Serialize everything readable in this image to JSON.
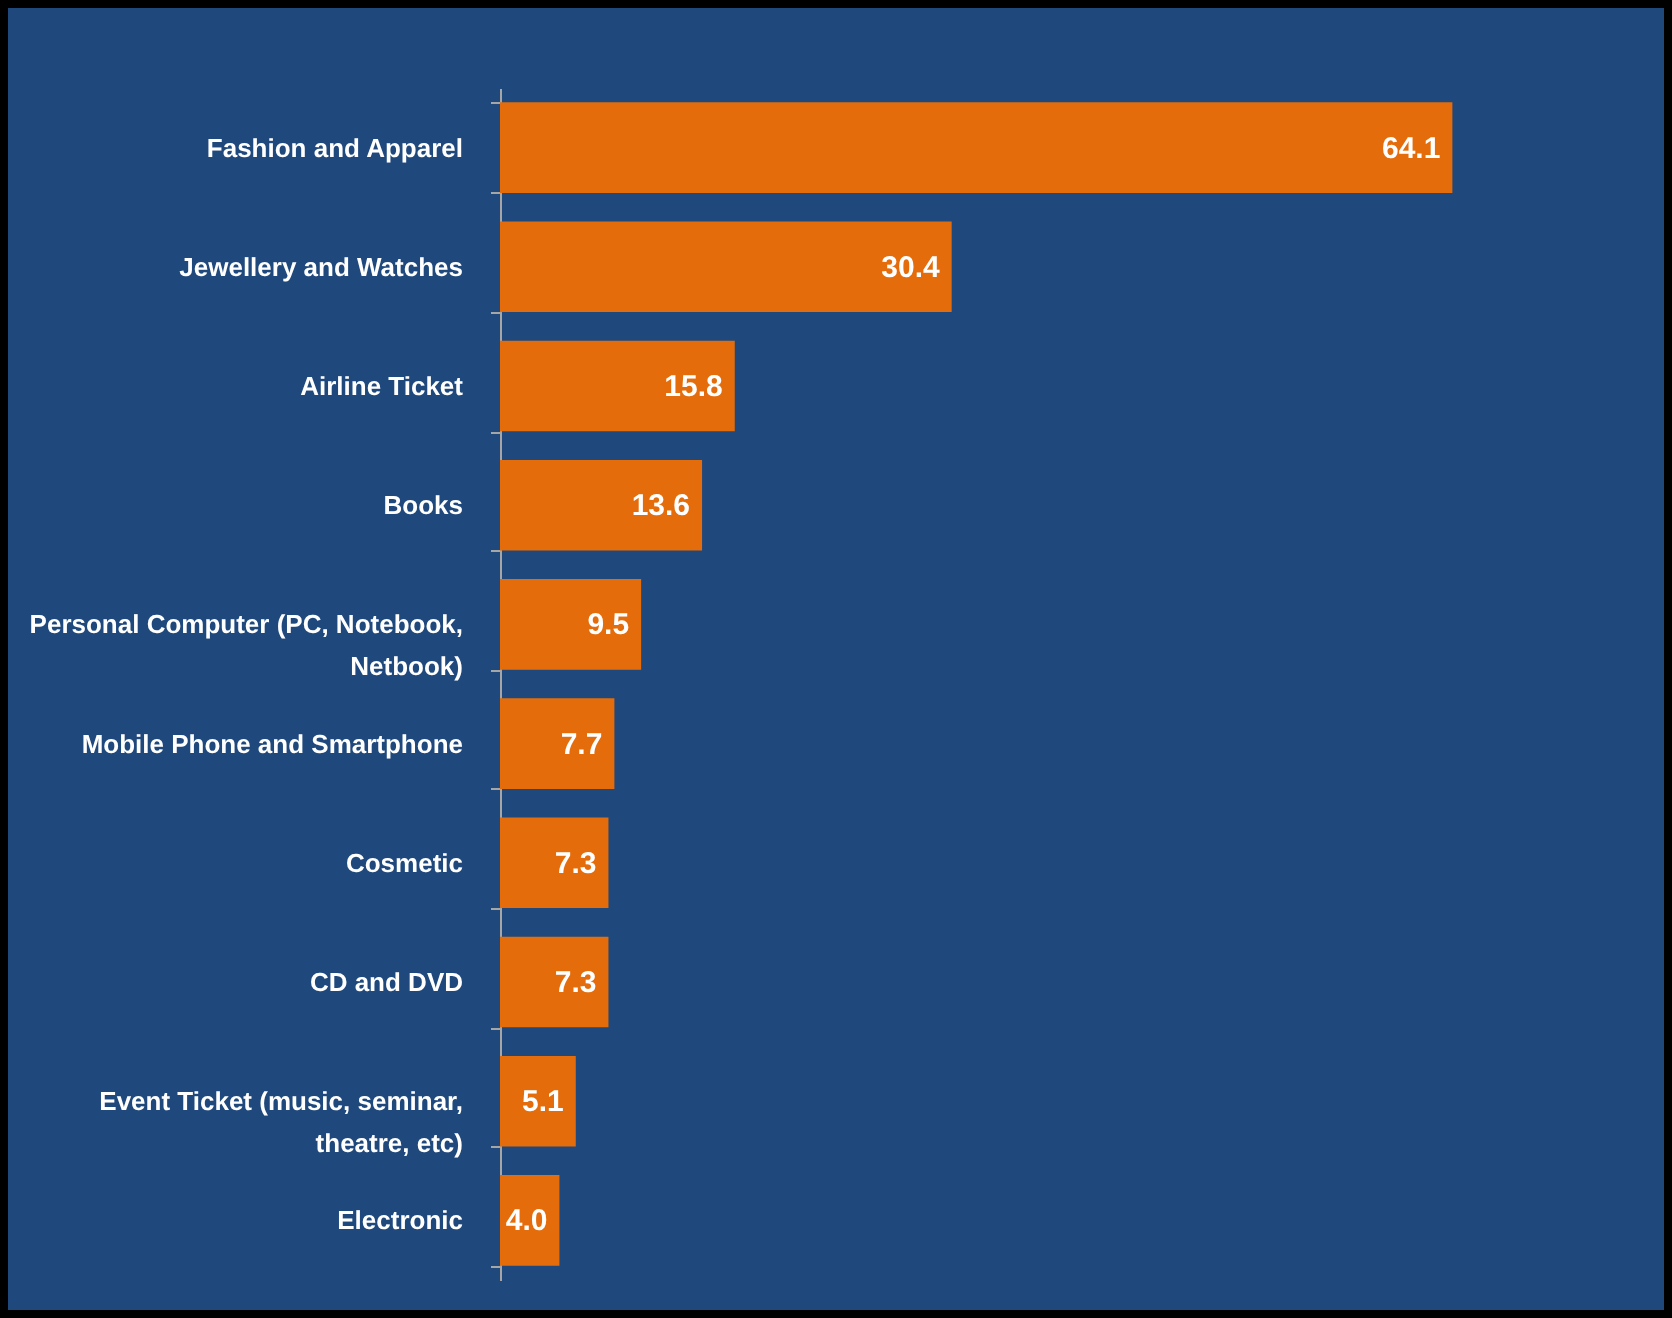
{
  "chart_data": {
    "type": "bar",
    "orientation": "horizontal",
    "categories": [
      "Fashion and Apparel",
      "Jewellery and Watches",
      "Airline Ticket",
      "Books",
      "Personal Computer (PC, Notebook, Netbook)",
      "Mobile Phone and Smartphone",
      "Cosmetic",
      "CD and DVD",
      "Event Ticket (music, seminar, theatre, etc)",
      "Electronic"
    ],
    "values": [
      64.1,
      30.4,
      15.8,
      13.6,
      9.5,
      7.7,
      7.3,
      7.3,
      5.1,
      4.0
    ],
    "value_labels": [
      "64.1",
      "30.4",
      "15.8",
      "13.6",
      "9.5",
      "7.7",
      "7.3",
      "7.3",
      "5.1",
      "4.0"
    ],
    "color": "#e46c0a"
  }
}
